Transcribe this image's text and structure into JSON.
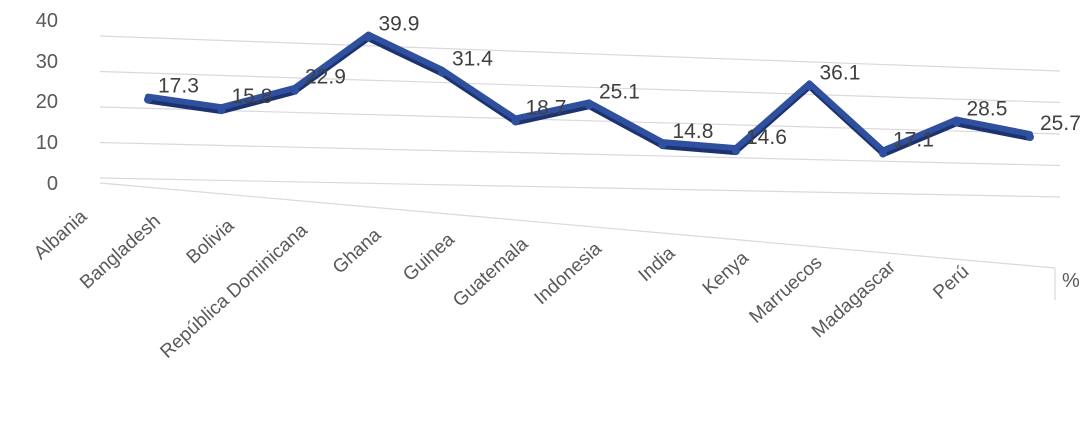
{
  "chart_data": {
    "type": "line",
    "categories": [
      "Albania",
      "Bangladesh",
      "Bolivia",
      "República Dominicana",
      "Ghana",
      "Guinea",
      "Guatemala",
      "Indonesia",
      "India",
      "Kenya",
      "Marruecos",
      "Madagascar",
      "Perú"
    ],
    "series": [
      {
        "values": [
          17.3,
          15.8,
          22.9,
          39.9,
          31.4,
          18.7,
          25.1,
          14.8,
          14.6,
          36.1,
          17.1,
          28.5,
          25.7
        ]
      }
    ],
    "data_labels": [
      "17.3",
      "15.8",
      "22.9",
      "39.9",
      "31.4",
      "18.7",
      "25.1",
      "14.8",
      "14.6",
      "36.1",
      "17.1",
      "28.5",
      "25.7"
    ],
    "y_ticks": [
      "0",
      "10",
      "20",
      "30",
      "40"
    ],
    "y_tick_values": [
      0,
      10,
      20,
      30,
      40
    ],
    "ylim": [
      0,
      40
    ],
    "depth_axis_label": "%",
    "style": "3d-line",
    "grid": true,
    "legend": "none",
    "colors": {
      "line": "#2f4f9f",
      "line_dark": "#1d3370",
      "grid": "#d9d9d9",
      "text": "#595959"
    }
  }
}
